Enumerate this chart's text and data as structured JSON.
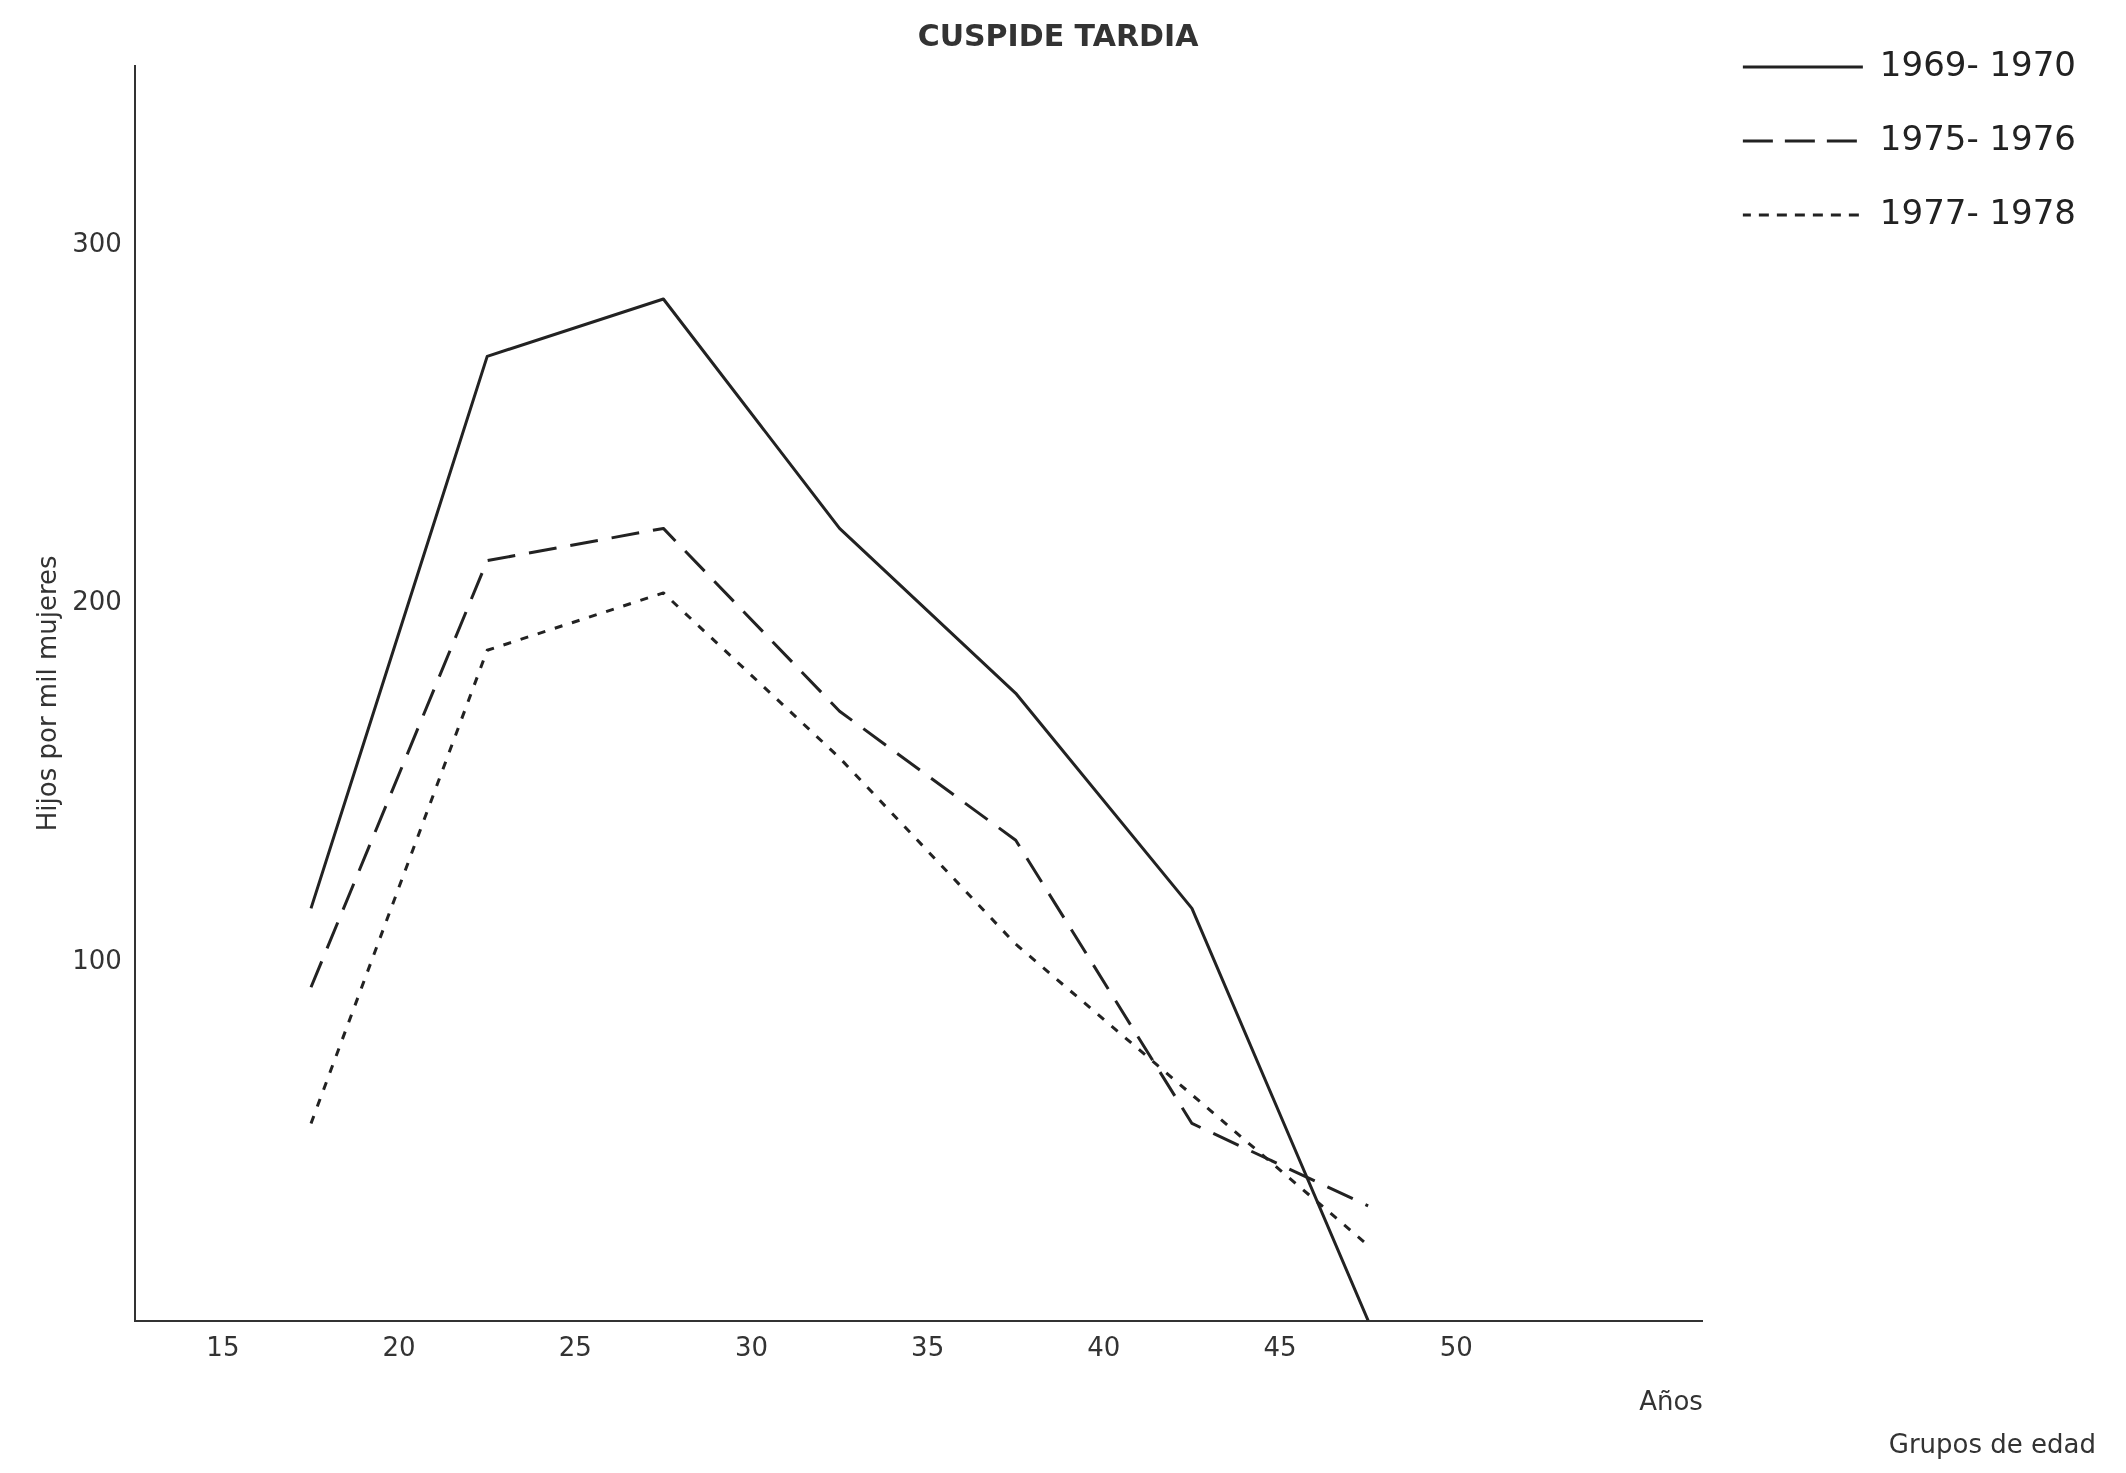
{
  "chart_data": {
    "type": "line",
    "title": "CUSPIDE TARDIA",
    "xlabel": "Años",
    "ylabel": "Hijos por mil mujeres",
    "annotations": [
      "Grupos de edad"
    ],
    "x": [
      17.5,
      22.5,
      27.5,
      32.5,
      37.5,
      42.5,
      47.5
    ],
    "series": [
      {
        "name": "1969- 1970",
        "color": "#222222",
        "line_style": "solid",
        "values": [
          115,
          269,
          285,
          221,
          175,
          115,
          0
        ]
      },
      {
        "name": "1975- 1976",
        "color": "#222222",
        "line_style": "dashed",
        "values": [
          93,
          212,
          221,
          170,
          134,
          55,
          32
        ]
      },
      {
        "name": "1977- 1978",
        "color": "#222222",
        "line_style": "dotted",
        "values": [
          55,
          187,
          203,
          157,
          105,
          63,
          21
        ]
      }
    ],
    "xlim": [
      12.5,
      57
    ],
    "xticks": [
      15,
      20,
      25,
      30,
      35,
      40,
      45,
      50
    ],
    "ylim": [
      0,
      350
    ],
    "yticks": [
      100,
      200,
      300
    ],
    "grid": false,
    "legend": "top right",
    "marker": "none"
  }
}
